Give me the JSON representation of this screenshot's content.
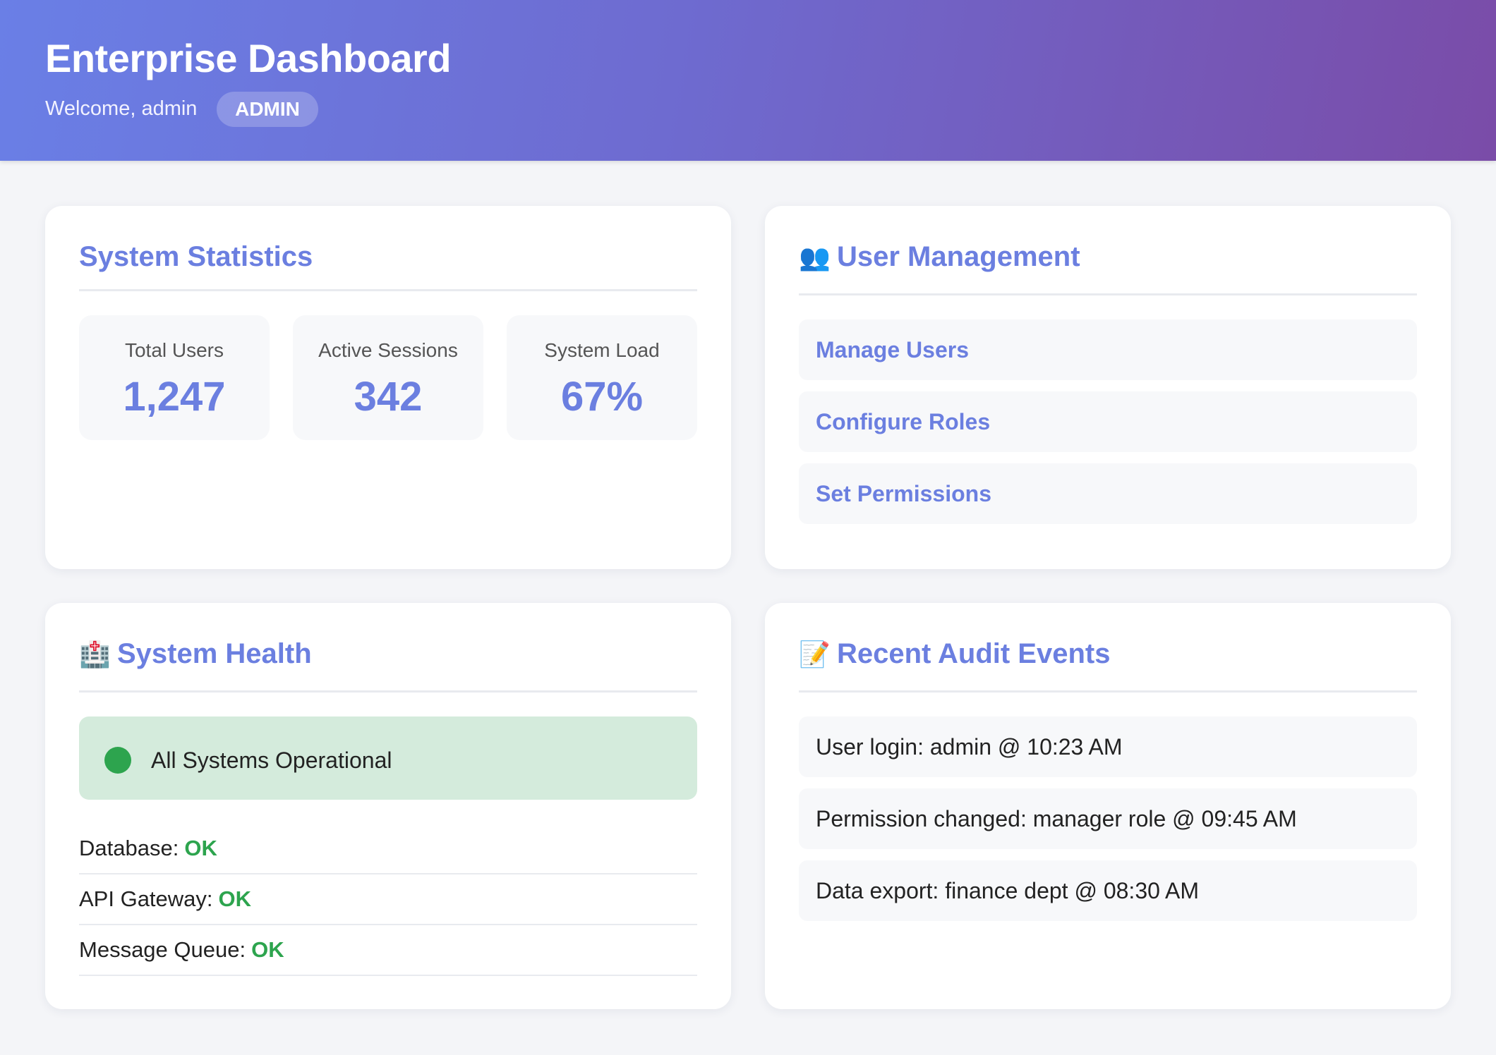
{
  "header": {
    "title": "Enterprise Dashboard",
    "welcome": "Welcome, admin",
    "role_badge": "ADMIN"
  },
  "stats_card": {
    "title": "System Statistics",
    "stats": [
      {
        "label": "Total Users",
        "value": "1,247"
      },
      {
        "label": "Active Sessions",
        "value": "342"
      },
      {
        "label": "System Load",
        "value": "67%"
      }
    ]
  },
  "user_mgmt": {
    "icon": "users-icon",
    "title": "User Management",
    "links": [
      "Manage Users",
      "Configure Roles",
      "Set Permissions"
    ]
  },
  "health": {
    "icon": "hospital-icon",
    "title": "System Health",
    "status": "All Systems Operational",
    "items": [
      {
        "label": "Database:",
        "status": "OK"
      },
      {
        "label": "API Gateway:",
        "status": "OK"
      },
      {
        "label": "Message Queue:",
        "status": "OK"
      }
    ]
  },
  "audit": {
    "icon": "memo-icon",
    "title": "Recent Audit Events",
    "events": [
      "User login: admin @ 10:23 AM",
      "Permission changed: manager role @ 09:45 AM",
      "Data export: finance dept @ 08:30 AM"
    ]
  },
  "colors": {
    "accent": "#6b7fe0",
    "ok": "#2da44e",
    "status_bg": "#d4ebdc"
  }
}
